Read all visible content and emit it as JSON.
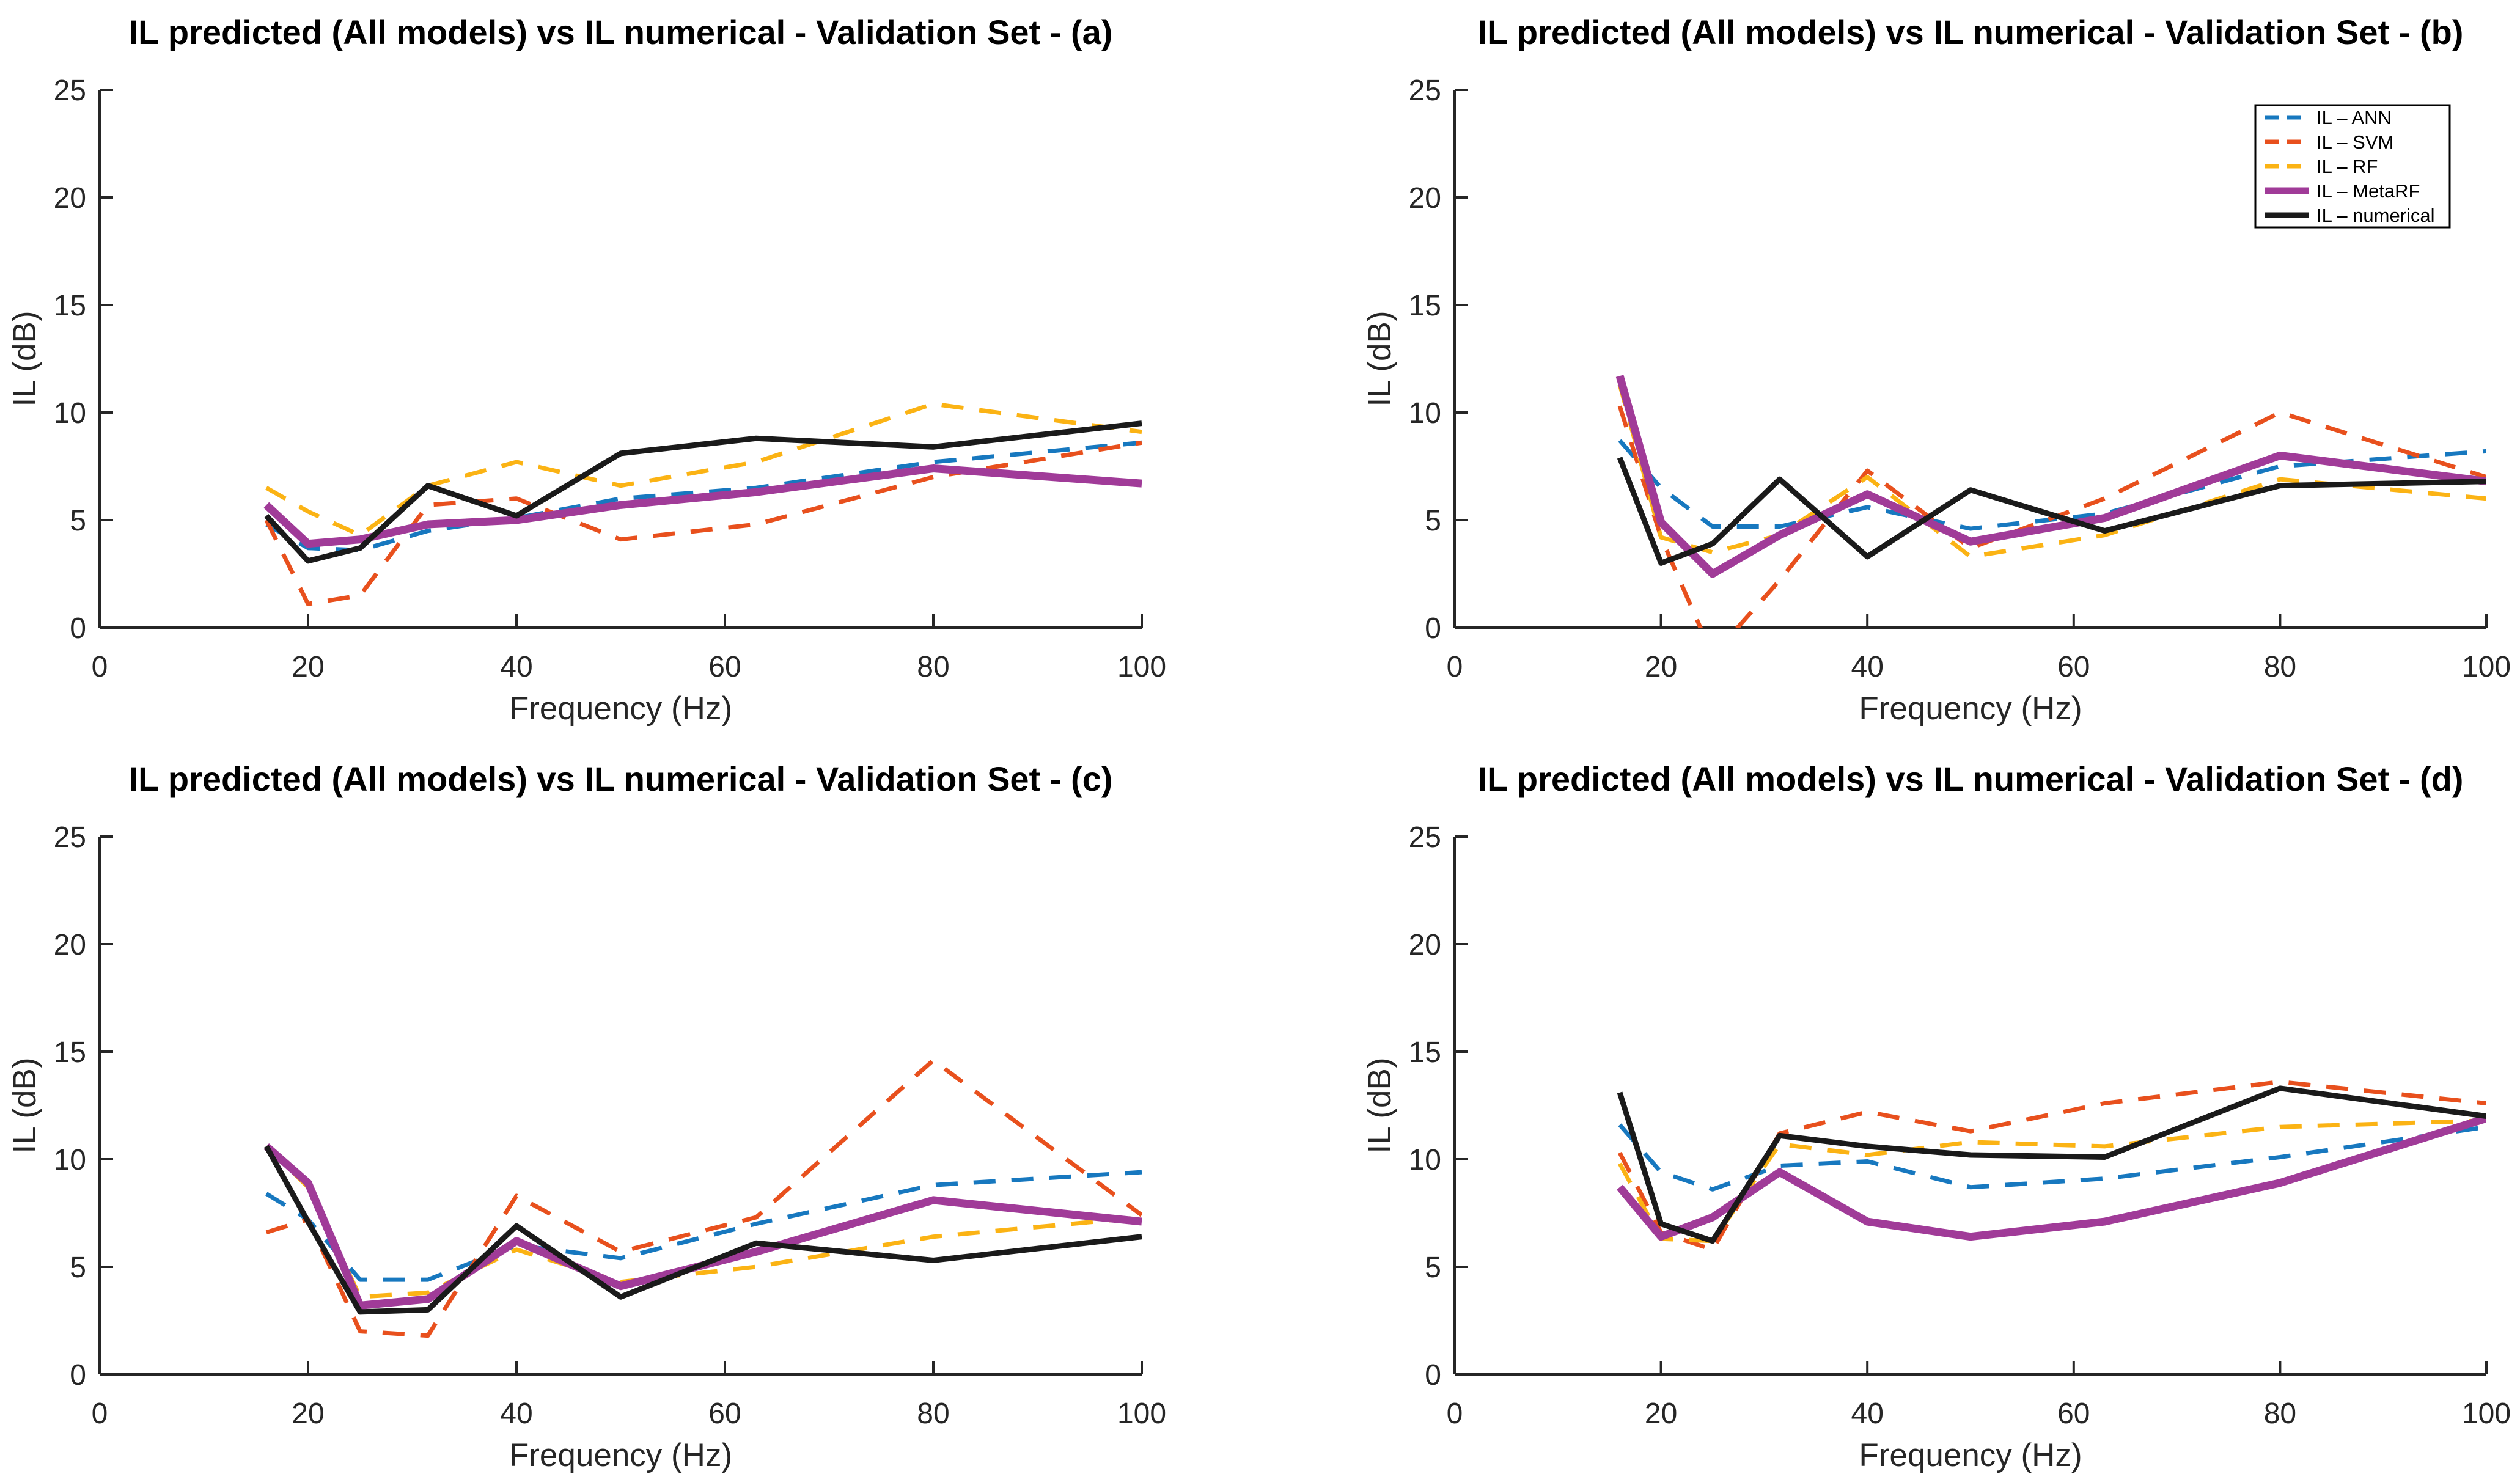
{
  "figure": {
    "background": "#ffffff",
    "axis_color": "#262626",
    "panel_letters": [
      "a",
      "b",
      "c",
      "d"
    ]
  },
  "palette": {
    "ANN": "#1778BF",
    "SVM": "#E8501D",
    "RF": "#FBB314",
    "MetaRF": "#A03B98",
    "numerical": "#1A1A1A"
  },
  "legend": {
    "location": "top-right of panel (b)",
    "border_color": "#000000",
    "background": "#ffffff",
    "entries": [
      "IL – ANN",
      "IL – SVM",
      "IL – RF",
      "IL – MetaRF",
      "IL – numerical"
    ]
  },
  "chart_data": [
    {
      "type": "line",
      "panel": "a",
      "title": "IL predicted (All models) vs IL numerical - Validation Set - (a)",
      "xlabel": "Frequency (Hz)",
      "ylabel": "IL (dB)",
      "xlim": [
        0,
        100
      ],
      "ylim": [
        0,
        25
      ],
      "xticks": [
        0,
        20,
        40,
        60,
        80,
        100
      ],
      "yticks": [
        0,
        5,
        10,
        15,
        20,
        25
      ],
      "grid": false,
      "legend_visible": false,
      "x": [
        16,
        20,
        25,
        31.5,
        40,
        50,
        63,
        80,
        100
      ],
      "series": [
        {
          "name": "IL – ANN",
          "key": "ANN",
          "style": "dashed",
          "values": [
            4.8,
            3.7,
            3.6,
            4.5,
            5.1,
            6.0,
            6.5,
            7.7,
            8.6
          ]
        },
        {
          "name": "IL – SVM",
          "key": "SVM",
          "style": "dashed",
          "values": [
            5.0,
            1.1,
            1.5,
            5.7,
            6.0,
            4.1,
            4.8,
            7.0,
            8.6
          ]
        },
        {
          "name": "IL – RF",
          "key": "RF",
          "style": "dashed",
          "values": [
            6.5,
            5.4,
            4.3,
            6.6,
            7.7,
            6.6,
            7.7,
            10.4,
            9.1
          ]
        },
        {
          "name": "IL – MetaRF",
          "key": "MetaRF",
          "style": "solid-thick",
          "values": [
            5.7,
            3.9,
            4.1,
            4.8,
            5.0,
            5.7,
            6.3,
            7.4,
            6.7
          ]
        },
        {
          "name": "IL – numerical",
          "key": "numerical",
          "style": "solid",
          "values": [
            5.2,
            3.1,
            3.7,
            6.6,
            5.2,
            8.1,
            8.8,
            8.4,
            9.5
          ]
        }
      ]
    },
    {
      "type": "line",
      "panel": "b",
      "title": "IL predicted (All models) vs IL numerical - Validation Set - (b)",
      "xlabel": "Frequency (Hz)",
      "ylabel": "IL (dB)",
      "xlim": [
        0,
        100
      ],
      "ylim": [
        0,
        25
      ],
      "xticks": [
        0,
        20,
        40,
        60,
        80,
        100
      ],
      "yticks": [
        0,
        5,
        10,
        15,
        20,
        25
      ],
      "grid": false,
      "legend_visible": true,
      "x": [
        16,
        20,
        25,
        31.5,
        40,
        50,
        63,
        80,
        100
      ],
      "series": [
        {
          "name": "IL – ANN",
          "key": "ANN",
          "style": "dashed",
          "values": [
            8.7,
            6.5,
            4.7,
            4.7,
            5.6,
            4.6,
            5.3,
            7.5,
            8.2
          ]
        },
        {
          "name": "IL – SVM",
          "key": "SVM",
          "style": "dashed",
          "values": [
            10.3,
            4.2,
            -1.3,
            2.2,
            7.3,
            3.7,
            6.0,
            10.0,
            7.0
          ]
        },
        {
          "name": "IL – RF",
          "key": "RF",
          "style": "dashed",
          "values": [
            11.3,
            4.2,
            3.5,
            4.3,
            7.0,
            3.3,
            4.3,
            6.9,
            6.0
          ]
        },
        {
          "name": "IL – MetaRF",
          "key": "MetaRF",
          "style": "solid-thick",
          "values": [
            11.7,
            4.9,
            2.5,
            4.3,
            6.2,
            4.0,
            5.1,
            8.0,
            6.8
          ]
        },
        {
          "name": "IL – numerical",
          "key": "numerical",
          "style": "solid",
          "values": [
            7.9,
            3.0,
            3.9,
            6.9,
            3.3,
            6.4,
            4.5,
            6.6,
            6.8
          ]
        }
      ]
    },
    {
      "type": "line",
      "panel": "c",
      "title": "IL predicted (All models) vs IL numerical - Validation Set - (c)",
      "xlabel": "Frequency (Hz)",
      "ylabel": "IL (dB)",
      "xlim": [
        0,
        100
      ],
      "ylim": [
        0,
        25
      ],
      "xticks": [
        0,
        20,
        40,
        60,
        80,
        100
      ],
      "yticks": [
        0,
        5,
        10,
        15,
        20,
        25
      ],
      "grid": false,
      "legend_visible": false,
      "x": [
        16,
        20,
        25,
        31.5,
        40,
        50,
        63,
        80,
        100
      ],
      "series": [
        {
          "name": "IL – ANN",
          "key": "ANN",
          "style": "dashed",
          "values": [
            8.4,
            7.2,
            4.4,
            4.4,
            6.0,
            5.4,
            7.0,
            8.8,
            9.4
          ]
        },
        {
          "name": "IL – SVM",
          "key": "SVM",
          "style": "dashed",
          "values": [
            6.6,
            7.2,
            2.0,
            1.8,
            8.3,
            5.7,
            7.3,
            14.6,
            7.4
          ]
        },
        {
          "name": "IL – RF",
          "key": "RF",
          "style": "dashed",
          "values": [
            10.6,
            8.7,
            3.6,
            3.8,
            5.8,
            4.3,
            5.0,
            6.4,
            7.3
          ]
        },
        {
          "name": "IL – MetaRF",
          "key": "MetaRF",
          "style": "solid-thick",
          "values": [
            10.6,
            8.9,
            3.2,
            3.5,
            6.2,
            4.1,
            5.7,
            8.1,
            7.1
          ]
        },
        {
          "name": "IL – numerical",
          "key": "numerical",
          "style": "solid",
          "values": [
            10.6,
            7.1,
            2.9,
            3.0,
            6.9,
            3.6,
            6.1,
            5.3,
            6.4
          ]
        }
      ]
    },
    {
      "type": "line",
      "panel": "d",
      "title": "IL predicted (All models) vs IL numerical - Validation Set - (d)",
      "xlabel": "Frequency (Hz)",
      "ylabel": "IL (dB)",
      "xlim": [
        0,
        100
      ],
      "ylim": [
        0,
        25
      ],
      "xticks": [
        0,
        20,
        40,
        60,
        80,
        100
      ],
      "yticks": [
        0,
        5,
        10,
        15,
        20,
        25
      ],
      "grid": false,
      "legend_visible": false,
      "x": [
        16,
        20,
        25,
        31.5,
        40,
        50,
        63,
        80,
        100
      ],
      "series": [
        {
          "name": "IL – ANN",
          "key": "ANN",
          "style": "dashed",
          "values": [
            11.6,
            9.4,
            8.6,
            9.7,
            9.9,
            8.7,
            9.1,
            10.1,
            11.5
          ]
        },
        {
          "name": "IL – SVM",
          "key": "SVM",
          "style": "dashed",
          "values": [
            10.3,
            6.6,
            5.8,
            11.2,
            12.2,
            11.3,
            12.6,
            13.6,
            12.6
          ]
        },
        {
          "name": "IL – RF",
          "key": "RF",
          "style": "dashed",
          "values": [
            9.8,
            6.3,
            6.2,
            10.7,
            10.2,
            10.8,
            10.6,
            11.5,
            11.8
          ]
        },
        {
          "name": "IL – MetaRF",
          "key": "MetaRF",
          "style": "solid-thick",
          "values": [
            8.7,
            6.4,
            7.3,
            9.4,
            7.1,
            6.4,
            7.1,
            8.9,
            11.9
          ]
        },
        {
          "name": "IL – numerical",
          "key": "numerical",
          "style": "solid",
          "values": [
            13.1,
            7.0,
            6.2,
            11.1,
            10.6,
            10.2,
            10.1,
            13.3,
            12.0
          ]
        }
      ]
    }
  ]
}
